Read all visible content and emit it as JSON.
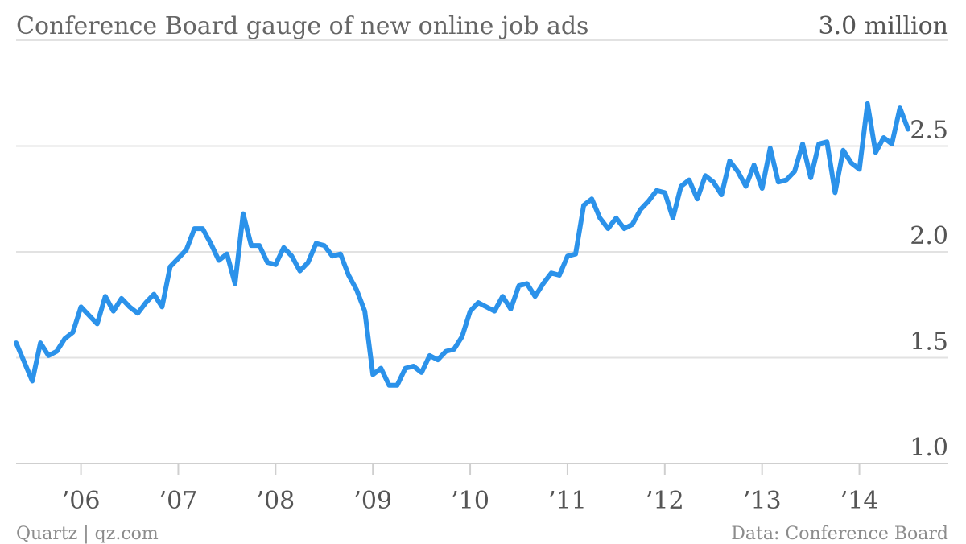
{
  "title": "Conference Board gauge of new online job ads",
  "top_label": "3.0 million",
  "footer": {
    "source_left": "Quartz | qz.com",
    "source_right": "Data: Conference Board"
  },
  "colors": {
    "line": "#2b92ea",
    "grid": "#e2e2e2",
    "text": "#555555"
  },
  "chart_data": {
    "type": "line",
    "title": "Conference Board gauge of new online job ads",
    "xlabel": "",
    "ylabel": "",
    "ylim": [
      1.0,
      3.0
    ],
    "yticks": [
      1.0,
      1.5,
      2.0,
      2.5
    ],
    "ytick_labels": [
      "1.0",
      "1.5",
      "2.0",
      "2.5"
    ],
    "grid": true,
    "x_tick_labels": [
      "’06",
      "’07",
      "’08",
      "’09",
      "’10",
      "’11",
      "’12",
      "’13",
      "’14"
    ],
    "x_tick_years": [
      2006,
      2007,
      2008,
      2009,
      2010,
      2011,
      2012,
      2013,
      2014
    ],
    "x_start": "2005-05",
    "series": [
      {
        "values": [
          1.57,
          1.48,
          1.39,
          1.57,
          1.51,
          1.53,
          1.59,
          1.62,
          1.74,
          1.7,
          1.66,
          1.79,
          1.72,
          1.78,
          1.74,
          1.71,
          1.76,
          1.8,
          1.74,
          1.93,
          1.97,
          2.01,
          2.11,
          2.11,
          2.04,
          1.96,
          1.99,
          1.85,
          2.18,
          2.03,
          2.03,
          1.95,
          1.94,
          2.02,
          1.98,
          1.91,
          1.95,
          2.04,
          2.03,
          1.98,
          1.99,
          1.89,
          1.82,
          1.72,
          1.42,
          1.45,
          1.37,
          1.37,
          1.45,
          1.46,
          1.43,
          1.51,
          1.49,
          1.53,
          1.54,
          1.6,
          1.72,
          1.76,
          1.74,
          1.72,
          1.79,
          1.73,
          1.84,
          1.85,
          1.79,
          1.85,
          1.9,
          1.89,
          1.98,
          1.99,
          2.22,
          2.25,
          2.16,
          2.11,
          2.16,
          2.11,
          2.13,
          2.2,
          2.24,
          2.29,
          2.28,
          2.16,
          2.31,
          2.34,
          2.25,
          2.36,
          2.33,
          2.27,
          2.43,
          2.38,
          2.31,
          2.41,
          2.3,
          2.49,
          2.33,
          2.34,
          2.38,
          2.51,
          2.35,
          2.51,
          2.52,
          2.28,
          2.48,
          2.42,
          2.39,
          2.7,
          2.47,
          2.54,
          2.51,
          2.68,
          2.58
        ]
      }
    ]
  }
}
